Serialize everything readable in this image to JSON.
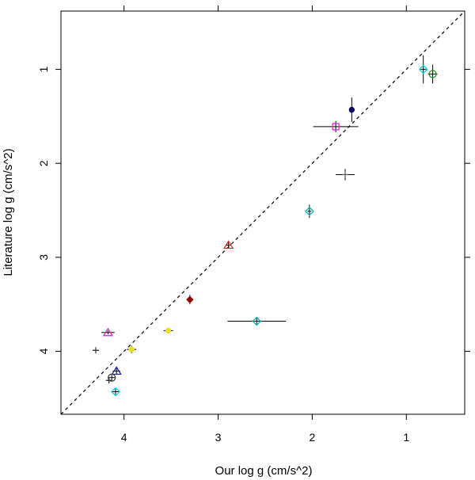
{
  "chart_data": {
    "type": "scatter",
    "xlabel": "Our log g (cm/s^2)",
    "ylabel": "Literature log g (cm/s^2)",
    "xlim": [
      4.67,
      0.38
    ],
    "ylim": [
      4.67,
      0.38
    ],
    "x_axis_reversed": true,
    "y_axis_reversed": true,
    "x_ticks": [
      4,
      3,
      2,
      1
    ],
    "x_tick_labels": [
      "4",
      "3",
      "2",
      "1"
    ],
    "y_ticks": [
      1,
      2,
      3,
      4
    ],
    "y_tick_labels": [
      "1",
      "2",
      "3",
      "4"
    ],
    "reference_line": {
      "style": "dashed",
      "color": "#000000",
      "equation": "y = x"
    },
    "points": [
      {
        "x": 0.82,
        "y": 1.0,
        "marker": "diamond",
        "color": "#00d8e8",
        "xerr": 0.03,
        "yerr": 0.15
      },
      {
        "x": 0.72,
        "y": 1.05,
        "marker": "circle-plus",
        "color": "#1a8c1a",
        "xerr": 0.05,
        "yerr": 0.1
      },
      {
        "x": 1.58,
        "y": 1.43,
        "marker": "filled-circle",
        "color": "#000066",
        "xerr": 0.0,
        "yerr": 0.13
      },
      {
        "x": 1.75,
        "y": 1.61,
        "marker": "square",
        "color": "#d020d0",
        "xerr": 0.24,
        "yerr": 0.06
      },
      {
        "x": 1.65,
        "y": 2.12,
        "marker": "plus",
        "color": "#555555",
        "xerr": 0.1,
        "yerr": 0.06
      },
      {
        "x": 2.03,
        "y": 2.51,
        "marker": "diamond",
        "color": "#00b8c8",
        "xerr": 0.02,
        "yerr": 0.07
      },
      {
        "x": 2.89,
        "y": 2.87,
        "marker": "triangle",
        "color": "#e02020",
        "xerr": 0.03,
        "yerr": 0.03
      },
      {
        "x": 3.3,
        "y": 3.45,
        "marker": "filled-diamond",
        "color": "#990000",
        "xerr": 0.03,
        "yerr": 0.05
      },
      {
        "x": 2.59,
        "y": 3.68,
        "marker": "diamond",
        "color": "#00b8c8",
        "xerr": 0.31,
        "yerr": 0.04
      },
      {
        "x": 3.53,
        "y": 3.78,
        "marker": "filled-circle",
        "color": "#e8e020",
        "xerr": 0.05,
        "yerr": 0.03
      },
      {
        "x": 4.17,
        "y": 3.8,
        "marker": "triangle",
        "color": "#d020d0",
        "xerr": 0.07,
        "yerr": 0.02
      },
      {
        "x": 3.92,
        "y": 3.98,
        "marker": "filled-circle",
        "color": "#e8e020",
        "xerr": 0.05,
        "yerr": 0.04
      },
      {
        "x": 4.3,
        "y": 3.99,
        "marker": "plus",
        "color": "#333333",
        "xerr": 0.03,
        "yerr": 0.02
      },
      {
        "x": 4.08,
        "y": 4.21,
        "marker": "triangle",
        "color": "#1a1a99",
        "xerr": 0.04,
        "yerr": 0.04
      },
      {
        "x": 4.13,
        "y": 4.28,
        "marker": "circle-plus",
        "color": "#333333",
        "xerr": 0.04,
        "yerr": 0.03
      },
      {
        "x": 4.16,
        "y": 4.31,
        "marker": "plus",
        "color": "#333333",
        "xerr": 0.03,
        "yerr": 0.02
      },
      {
        "x": 4.09,
        "y": 4.43,
        "marker": "diamond",
        "color": "#00d8e8",
        "xerr": 0.04,
        "yerr": 0.03
      }
    ]
  }
}
